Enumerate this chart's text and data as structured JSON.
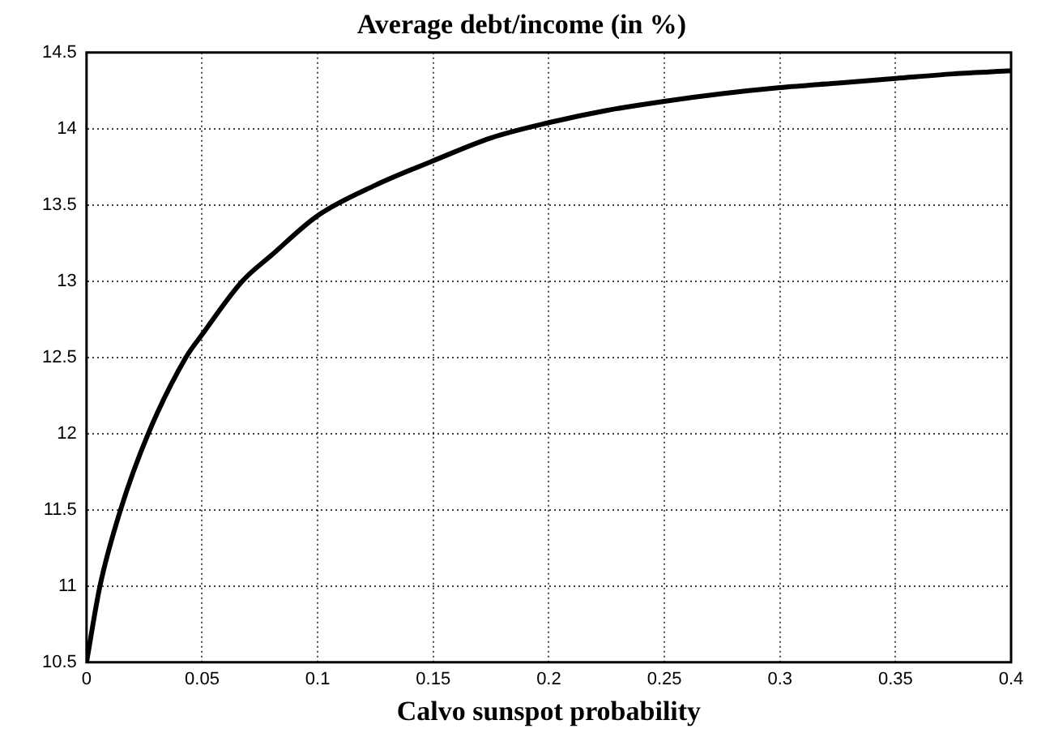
{
  "chart_data": {
    "type": "line",
    "title": "Average debt/income (in %)",
    "xlabel": "Calvo sunspot probability",
    "x": [
      0,
      0.0058,
      0.0147,
      0.0267,
      0.043,
      0.05,
      0.0674,
      0.08,
      0.1,
      0.125,
      0.15,
      0.175,
      0.2,
      0.225,
      0.25,
      0.275,
      0.3,
      0.325,
      0.35,
      0.375,
      0.4
    ],
    "series": [
      {
        "color": "#000000",
        "values": [
          10.5,
          11,
          11.5,
          12,
          12.5,
          12.65,
          13,
          13.17,
          13.43,
          13.63,
          13.79,
          13.94,
          14.04,
          14.12,
          14.18,
          14.23,
          14.27,
          14.3,
          14.33,
          14.36,
          14.38
        ]
      }
    ],
    "xlim": [
      0,
      0.4
    ],
    "xticks": [
      0,
      0.05,
      0.1,
      0.15,
      0.2,
      0.25,
      0.3,
      0.35,
      0.4
    ],
    "ylim": [
      10.5,
      14.5
    ],
    "yticks": [
      10.5,
      11,
      11.5,
      12,
      12.5,
      13,
      13.5,
      14,
      14.5
    ],
    "grid": true,
    "legend": false,
    "marker": "none",
    "line_style": "solid"
  }
}
